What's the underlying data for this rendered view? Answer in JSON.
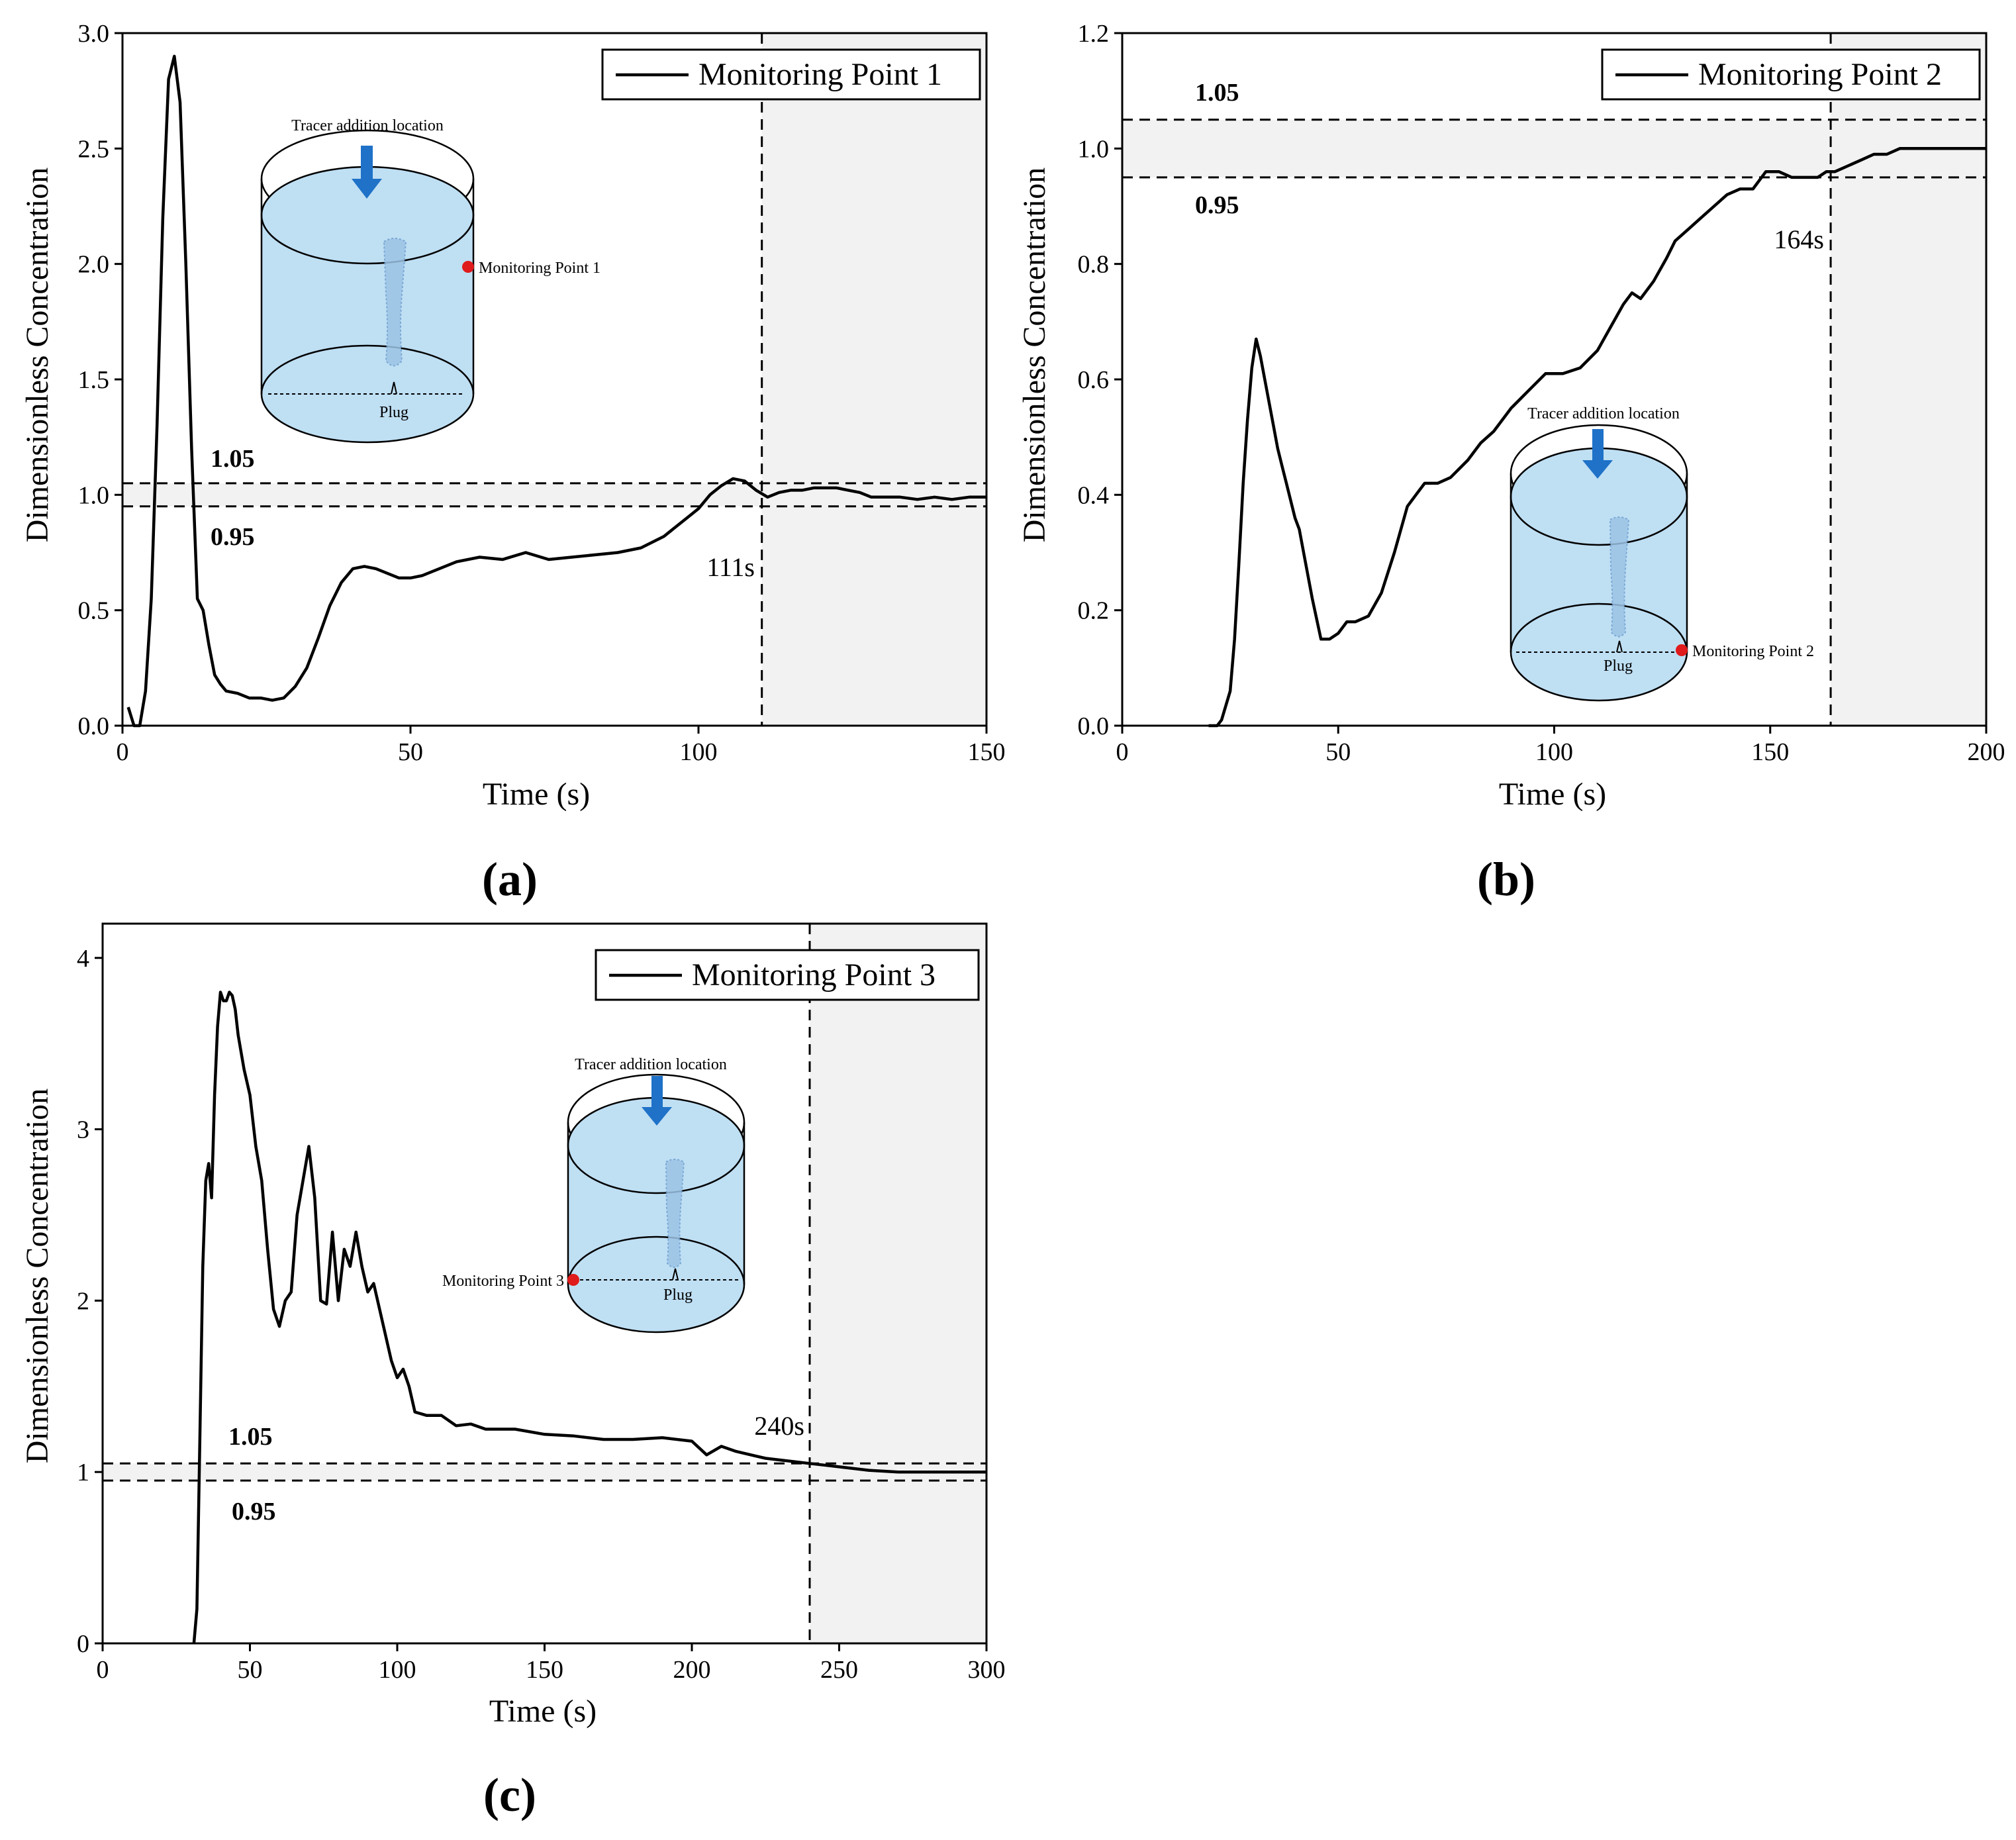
{
  "chart_data": [
    {
      "type": "line",
      "panel_label": "(a)",
      "legend_label": "Monitoring Point 1",
      "xlabel": "Time (s)",
      "ylabel": "Dimensionless Concentration",
      "xlim": [
        0,
        150
      ],
      "ylim": [
        0,
        3.0
      ],
      "xticks": [
        "0",
        "50",
        "100",
        "150"
      ],
      "yticks": [
        "0.0",
        "0.5",
        "1.0",
        "1.5",
        "2.0",
        "2.5",
        "3.0"
      ],
      "band_upper": 1.05,
      "band_lower": 0.95,
      "band_upper_label": "1.05",
      "band_lower_label": "0.95",
      "cutoff_time": 111,
      "cutoff_label": "111s",
      "series": [
        {
          "name": "Monitoring Point 1",
          "x": [
            1,
            2,
            3,
            4,
            5,
            6,
            7,
            8,
            9,
            10,
            11,
            12,
            13,
            14,
            15,
            16,
            17,
            18,
            20,
            22,
            24,
            26,
            28,
            30,
            32,
            34,
            36,
            38,
            40,
            42,
            44,
            46,
            48,
            50,
            52,
            55,
            58,
            62,
            66,
            70,
            74,
            78,
            82,
            86,
            90,
            94,
            96,
            98,
            100,
            102,
            104,
            106,
            108,
            110,
            112,
            114,
            116,
            118,
            120,
            122,
            124,
            126,
            128,
            130,
            132,
            135,
            138,
            141,
            144,
            147,
            150
          ],
          "y": [
            0.08,
            0,
            0,
            0.15,
            0.55,
            1.3,
            2.2,
            2.8,
            2.9,
            2.7,
            2.0,
            1.2,
            0.55,
            0.5,
            0.35,
            0.22,
            0.18,
            0.15,
            0.14,
            0.12,
            0.12,
            0.11,
            0.12,
            0.17,
            0.25,
            0.38,
            0.52,
            0.62,
            0.68,
            0.69,
            0.68,
            0.66,
            0.64,
            0.64,
            0.65,
            0.68,
            0.71,
            0.73,
            0.72,
            0.75,
            0.72,
            0.73,
            0.74,
            0.75,
            0.77,
            0.82,
            0.86,
            0.9,
            0.94,
            1.0,
            1.04,
            1.07,
            1.06,
            1.02,
            0.99,
            1.01,
            1.02,
            1.02,
            1.03,
            1.03,
            1.03,
            1.02,
            1.01,
            0.99,
            0.99,
            0.99,
            0.98,
            0.99,
            0.98,
            0.99,
            0.99
          ]
        }
      ],
      "inset": {
        "tracer_label": "Tracer addition location",
        "point_label": "Monitoring Point 1",
        "plug_label": "Plug"
      }
    },
    {
      "type": "line",
      "panel_label": "(b)",
      "legend_label": "Monitoring Point 2",
      "xlabel": "Time (s)",
      "ylabel": "Dimensionless Concentration",
      "xlim": [
        0,
        200
      ],
      "ylim": [
        0,
        1.2
      ],
      "xticks": [
        "0",
        "50",
        "100",
        "150",
        "200"
      ],
      "yticks": [
        "0.0",
        "0.2",
        "0.4",
        "0.6",
        "0.8",
        "1.0",
        "1.2"
      ],
      "band_upper": 1.05,
      "band_lower": 0.95,
      "band_upper_label": "1.05",
      "band_lower_label": "0.95",
      "cutoff_time": 164,
      "cutoff_label": "164s",
      "series": [
        {
          "name": "Monitoring Point 2",
          "x": [
            20,
            22,
            23,
            25,
            26,
            27,
            28,
            29,
            30,
            31,
            32,
            33,
            35,
            36,
            37,
            38,
            40,
            41,
            42,
            44,
            46,
            48,
            50,
            52,
            54,
            57,
            60,
            63,
            66,
            68,
            70,
            73,
            76,
            80,
            83,
            86,
            90,
            94,
            98,
            102,
            106,
            110,
            113,
            116,
            118,
            120,
            123,
            126,
            128,
            131,
            134,
            137,
            140,
            143,
            146,
            149,
            152,
            155,
            158,
            161,
            163,
            165,
            168,
            171,
            174,
            177,
            180,
            183,
            186,
            189,
            192,
            195,
            198,
            200
          ],
          "y": [
            0,
            0,
            0.01,
            0.06,
            0.15,
            0.28,
            0.42,
            0.53,
            0.62,
            0.67,
            0.64,
            0.6,
            0.52,
            0.48,
            0.45,
            0.42,
            0.36,
            0.34,
            0.3,
            0.22,
            0.15,
            0.15,
            0.16,
            0.18,
            0.18,
            0.19,
            0.23,
            0.3,
            0.38,
            0.4,
            0.42,
            0.42,
            0.43,
            0.46,
            0.49,
            0.51,
            0.55,
            0.58,
            0.61,
            0.61,
            0.62,
            0.65,
            0.69,
            0.73,
            0.75,
            0.74,
            0.77,
            0.81,
            0.84,
            0.86,
            0.88,
            0.9,
            0.92,
            0.93,
            0.93,
            0.96,
            0.96,
            0.95,
            0.95,
            0.95,
            0.96,
            0.96,
            0.97,
            0.98,
            0.99,
            0.99,
            1.0,
            1.0,
            1.0,
            1.0,
            1.0,
            1.0,
            1.0,
            1.0
          ]
        }
      ],
      "inset": {
        "tracer_label": "Tracer addition location",
        "point_label": "Monitoring Point 2",
        "plug_label": "Plug"
      }
    },
    {
      "type": "line",
      "panel_label": "(c)",
      "legend_label": "Monitoring Point 3",
      "xlabel": "Time (s)",
      "ylabel": "Dimensionless Concentration",
      "xlim": [
        0,
        300
      ],
      "ylim": [
        0,
        4.2
      ],
      "xticks": [
        "0",
        "50",
        "100",
        "150",
        "200",
        "250",
        "300"
      ],
      "yticks": [
        "0",
        "1",
        "2",
        "3",
        "4"
      ],
      "band_upper": 1.05,
      "band_lower": 0.95,
      "band_upper_label": "1.05",
      "band_lower_label": "0.95",
      "cutoff_time": 240,
      "cutoff_label": "240s",
      "series": [
        {
          "name": "Monitoring Point 3",
          "x": [
            31,
            32,
            33,
            34,
            35,
            36,
            37,
            38,
            39,
            40,
            41,
            42,
            43,
            44,
            45,
            46,
            48,
            50,
            52,
            54,
            56,
            58,
            60,
            62,
            64,
            66,
            68,
            70,
            72,
            74,
            76,
            78,
            80,
            82,
            84,
            86,
            88,
            90,
            92,
            94,
            96,
            98,
            100,
            102,
            104,
            106,
            110,
            115,
            120,
            125,
            130,
            140,
            150,
            160,
            170,
            180,
            190,
            200,
            205,
            210,
            215,
            220,
            225,
            230,
            235,
            240,
            245,
            250,
            255,
            260,
            270,
            280,
            290,
            300
          ],
          "y": [
            0,
            0.2,
            1.2,
            2.2,
            2.7,
            2.8,
            2.6,
            3.2,
            3.6,
            3.8,
            3.75,
            3.75,
            3.8,
            3.78,
            3.7,
            3.55,
            3.35,
            3.2,
            2.9,
            2.7,
            2.3,
            1.95,
            1.85,
            2.0,
            2.05,
            2.5,
            2.7,
            2.9,
            2.6,
            2.0,
            1.98,
            2.4,
            2.0,
            2.3,
            2.2,
            2.4,
            2.2,
            2.05,
            2.1,
            1.95,
            1.8,
            1.65,
            1.55,
            1.6,
            1.5,
            1.35,
            1.33,
            1.33,
            1.27,
            1.28,
            1.25,
            1.25,
            1.22,
            1.21,
            1.19,
            1.19,
            1.2,
            1.18,
            1.1,
            1.15,
            1.12,
            1.1,
            1.08,
            1.07,
            1.06,
            1.05,
            1.04,
            1.03,
            1.02,
            1.01,
            1.0,
            1.0,
            1.0,
            1.0
          ]
        }
      ],
      "inset": {
        "tracer_label": "Tracer addition location",
        "point_label": "Monitoring Point 3",
        "plug_label": "Plug"
      }
    }
  ]
}
